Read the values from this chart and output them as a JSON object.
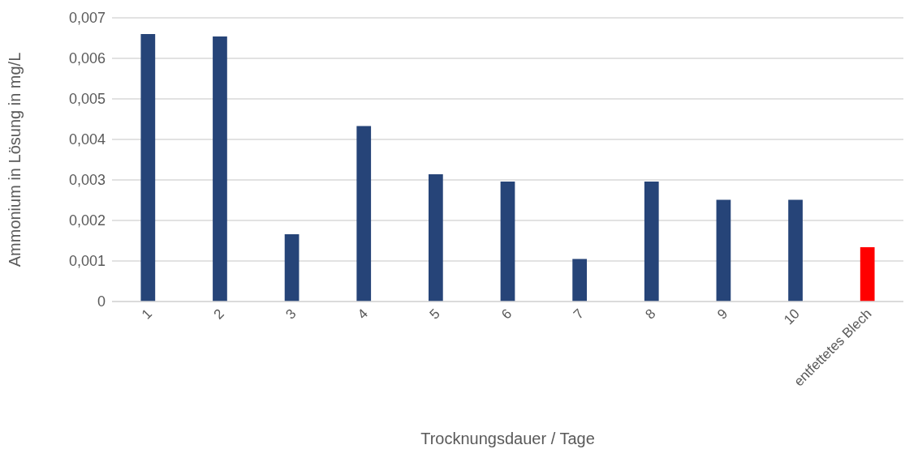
{
  "chart_data": {
    "type": "bar",
    "xlabel": "Trocknungsdauer / Tage",
    "ylabel": "Ammonium in Lösung in mg/L",
    "categories": [
      "1",
      "2",
      "3",
      "4",
      "5",
      "6",
      "7",
      "8",
      "9",
      "10",
      "entfettetes Blech"
    ],
    "values": [
      0.0066,
      0.00654,
      0.00166,
      0.00433,
      0.00314,
      0.00296,
      0.00105,
      0.00296,
      0.00251,
      0.00251,
      0.00134
    ],
    "colors": [
      "#264478",
      "#264478",
      "#264478",
      "#264478",
      "#264478",
      "#264478",
      "#264478",
      "#264478",
      "#264478",
      "#264478",
      "#ff0000"
    ],
    "ylim": [
      0,
      0.007
    ],
    "yticks": [
      0,
      {
        "value": 0.001,
        "label": "0,001"
      },
      {
        "value": 0.002,
        "label": "0,002"
      },
      {
        "value": 0.003,
        "label": "0,003"
      },
      {
        "value": 0.004,
        "label": "0,004"
      },
      {
        "value": 0.005,
        "label": "0,005"
      },
      {
        "value": 0.006,
        "label": "0,006"
      },
      {
        "value": 0.007,
        "label": "0,007"
      }
    ],
    "grid": "y"
  }
}
